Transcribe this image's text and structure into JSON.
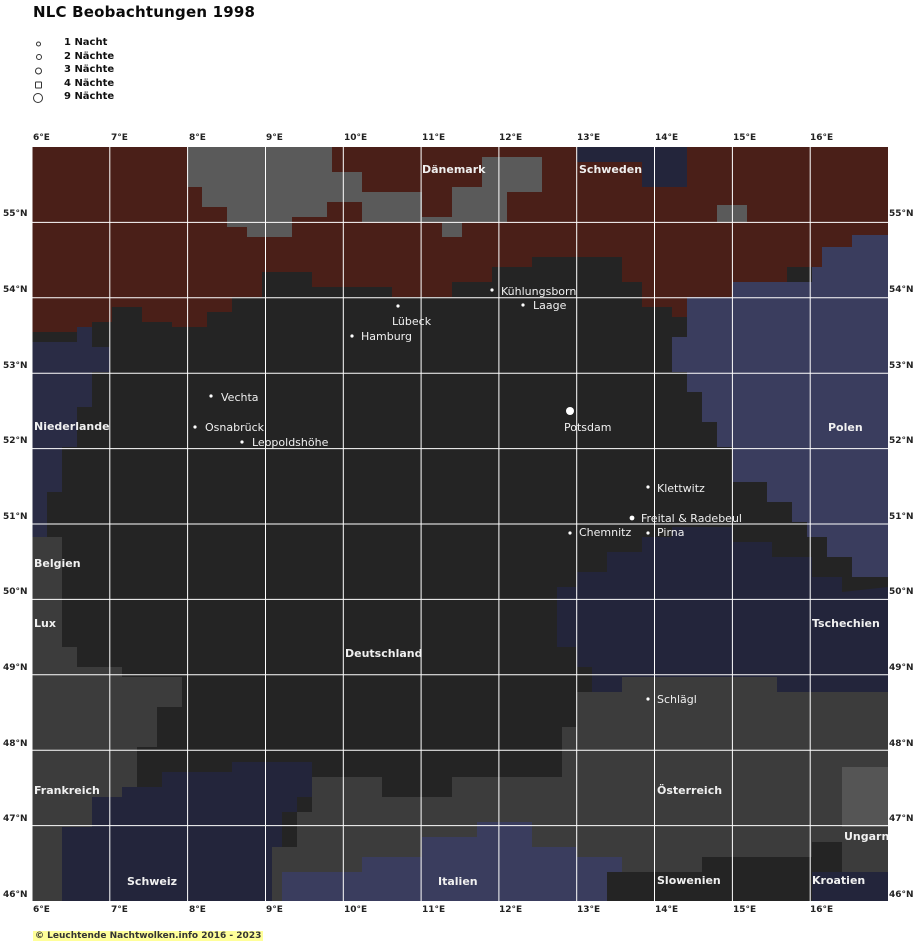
{
  "title": "NLC Beobachtungen 1998",
  "legend": [
    {
      "label": "1 Nacht",
      "size": 3
    },
    {
      "label": "2 Nächte",
      "size": 4
    },
    {
      "label": "3 Nächte",
      "size": 5
    },
    {
      "label": "4 Nächte",
      "size": 6
    },
    {
      "label": "9 Nächte",
      "size": 9
    }
  ],
  "axes": {
    "lon_ticks": [
      "6°E",
      "7°E",
      "8°E",
      "9°E",
      "10°E",
      "11°E",
      "12°E",
      "13°E",
      "14°E",
      "15°E",
      "16°E"
    ],
    "lat_ticks": [
      "55°N",
      "54°N",
      "53°N",
      "52°N",
      "51°N",
      "50°N",
      "49°N",
      "48°N",
      "47°N",
      "46°N"
    ]
  },
  "colors": {
    "germany": "#242424",
    "scandinavia": "#4a1f18",
    "sea": "#5a5a5a",
    "poland_czech": "#3a3d5e",
    "czech_dark": "#23253b",
    "alps": "#3c3c3c",
    "grid": "#ffffff"
  },
  "countries": [
    {
      "name": "Dänemark"
    },
    {
      "name": "Schweden"
    },
    {
      "name": "Niederlande"
    },
    {
      "name": "Polen"
    },
    {
      "name": "Belgien"
    },
    {
      "name": "Lux"
    },
    {
      "name": "Tschechien"
    },
    {
      "name": "Deutschland"
    },
    {
      "name": "Frankreich"
    },
    {
      "name": "Österreich"
    },
    {
      "name": "Ungarn"
    },
    {
      "name": "Schweiz"
    },
    {
      "name": "Italien"
    },
    {
      "name": "Slowenien"
    },
    {
      "name": "Kroatien"
    }
  ],
  "observations": [
    {
      "name": "Kühlungsborn",
      "nights": 1
    },
    {
      "name": "Laage",
      "nights": 1
    },
    {
      "name": "Lübeck",
      "nights": 1
    },
    {
      "name": "Hamburg",
      "nights": 1
    },
    {
      "name": "Vechta",
      "nights": 1
    },
    {
      "name": "Osnabrück",
      "nights": 1
    },
    {
      "name": "Leopoldshöhe",
      "nights": 1
    },
    {
      "name": "Potsdam",
      "nights": 9
    },
    {
      "name": "Klettwitz",
      "nights": 1
    },
    {
      "name": "Freital & Radebeul",
      "nights": 2
    },
    {
      "name": "Chemnitz",
      "nights": 1
    },
    {
      "name": "Pirna",
      "nights": 1
    },
    {
      "name": "Schlägl",
      "nights": 1
    }
  ],
  "copyright": "© Leuchtende Nachtwolken.info 2016 - 2023"
}
